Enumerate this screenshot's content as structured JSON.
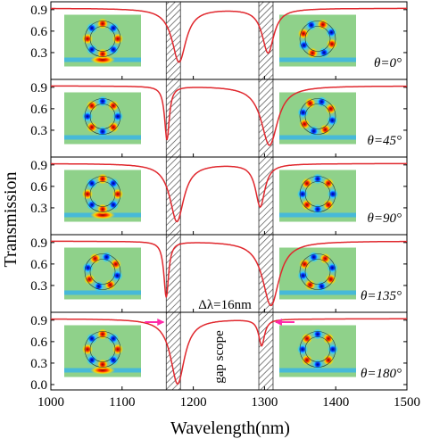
{
  "chart_data": {
    "type": "line",
    "xlabel": "Wavelength(nm)",
    "ylabel": "Transmission",
    "xlim": [
      1000,
      1500
    ],
    "xticks": [
      "1000",
      "1100",
      "1200",
      "1300",
      "1400",
      "1500"
    ],
    "yticks": [
      "0.0",
      "0.3",
      "0.6",
      "0.9"
    ],
    "line_color": "#e0282e",
    "hatch_bands_nm": [
      [
        1162,
        1182
      ],
      [
        1292,
        1312
      ]
    ],
    "annotations": {
      "delta": "Δλ=16nm",
      "gap": "gap scope",
      "arrow_color": "#ff2aa8"
    },
    "panels": [
      {
        "label": "θ=0°",
        "dips": [
          {
            "x": 1180,
            "min": 0.17,
            "w": 12
          },
          {
            "x": 1305,
            "min": 0.3,
            "w": 10
          }
        ],
        "mode_left": "top-bus",
        "mode_right": "right-bus"
      },
      {
        "label": "θ=45°",
        "dips": [
          {
            "x": 1163,
            "min": 0.17,
            "w": 4
          },
          {
            "x": 1307,
            "min": 0.09,
            "w": 14
          }
        ],
        "mode_left": "diag",
        "mode_right": "diag2"
      },
      {
        "label": "θ=90°",
        "dips": [
          {
            "x": 1177,
            "min": 0.11,
            "w": 12
          },
          {
            "x": 1294,
            "min": 0.32,
            "w": 8
          }
        ],
        "mode_left": "top-bus",
        "mode_right": "diag"
      },
      {
        "label": "θ=135°",
        "dips": [
          {
            "x": 1162,
            "min": 0.14,
            "w": 4
          },
          {
            "x": 1309,
            "min": 0.02,
            "w": 14
          }
        ],
        "mode_left": "side",
        "mode_right": "side2"
      },
      {
        "label": "θ=180°",
        "dips": [
          {
            "x": 1178,
            "min": 0.01,
            "w": 12
          },
          {
            "x": 1296,
            "min": 0.55,
            "w": 5
          }
        ],
        "mode_left": "top-bus",
        "mode_right": "diag"
      }
    ]
  }
}
